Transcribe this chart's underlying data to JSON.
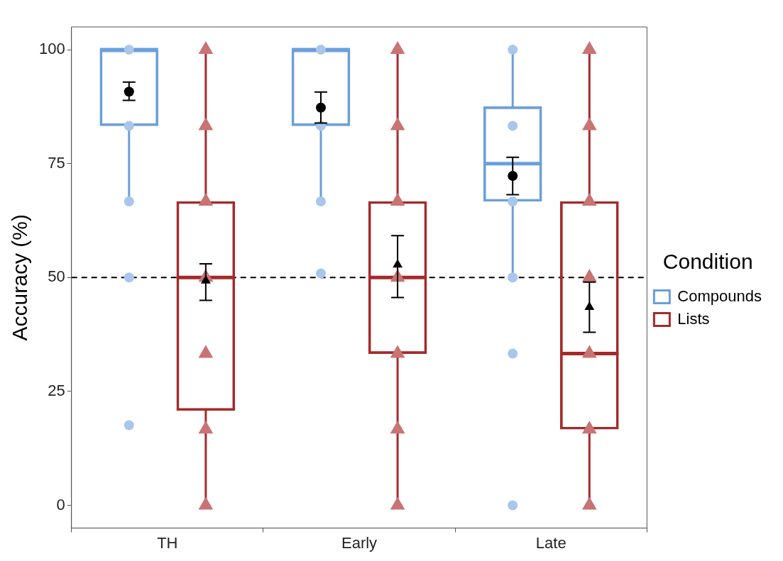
{
  "chart_data": {
    "type": "box",
    "ylabel": "Accuracy (%)",
    "categories": [
      "TH",
      "Early",
      "Late"
    ],
    "ylim": [
      -5,
      105
    ],
    "yticks": [
      0,
      25,
      50,
      75,
      100
    ],
    "grid": false,
    "legend": "right",
    "legend_title": "Condition",
    "ref_lines": [
      {
        "axis": "y",
        "value": 50,
        "color": "#000000",
        "line_style": "dashed"
      }
    ],
    "series": [
      {
        "name": "Compounds",
        "color": "#6a9fdc",
        "boxes": [
          {
            "low": 66.7,
            "q1": 83.3,
            "median": 100,
            "q3": 100,
            "high": 100
          },
          {
            "low": 66.7,
            "q1": 83.3,
            "median": 100,
            "q3": 100,
            "high": 100
          },
          {
            "low": 50,
            "q1": 66.7,
            "median": 75,
            "q3": 87.5,
            "high": 100
          }
        ]
      },
      {
        "name": "Lists",
        "color": "#a52a2a",
        "boxes": [
          {
            "low": 0,
            "q1": 20.8,
            "median": 50,
            "q3": 66.7,
            "high": 100
          },
          {
            "low": 0,
            "q1": 33.3,
            "median": 50,
            "q3": 66.7,
            "high": 100
          },
          {
            "low": 0,
            "q1": 16.7,
            "median": 33.3,
            "q3": 66.7,
            "high": 100
          }
        ]
      },
      {
        "type": "scatter",
        "color": "#a9c6ec",
        "marker": "circle",
        "x": [
          "TH",
          "TH",
          "TH",
          "TH",
          "TH",
          "Early",
          "Early",
          "Early",
          "Early",
          "Late",
          "Late",
          "Late",
          "Late",
          "Late",
          "Late"
        ],
        "values": [
          100,
          83.3,
          66.7,
          50,
          17.6,
          100,
          83.3,
          66.7,
          50.9,
          100,
          83.3,
          66.7,
          50,
          33.3,
          0
        ]
      },
      {
        "type": "scatter",
        "color": "#c97373",
        "marker": "triangle",
        "x": [
          "TH",
          "TH",
          "TH",
          "TH",
          "TH",
          "TH",
          "TH",
          "Early",
          "Early",
          "Early",
          "Early",
          "Early",
          "Early",
          "Early",
          "Late",
          "Late",
          "Late",
          "Late",
          "Late",
          "Late",
          "Late"
        ],
        "values": [
          0,
          16.7,
          33.3,
          50,
          66.7,
          83.3,
          100,
          0,
          16.7,
          33.3,
          50,
          66.7,
          83.3,
          100,
          0,
          16.7,
          33.3,
          50,
          66.7,
          83.3,
          100
        ]
      },
      {
        "type": "scatter",
        "color": "#000000",
        "marker": "circle",
        "x": [
          "TH",
          "Early",
          "Late"
        ],
        "values": [
          90.8,
          87.3,
          72.3
        ],
        "errors": [
          [
            88.9,
            92.9
          ],
          [
            83.9,
            90.7
          ],
          [
            68.2,
            76.4
          ]
        ]
      },
      {
        "type": "scatter",
        "color": "#000000",
        "marker": "triangle",
        "x": [
          "TH",
          "Early",
          "Late"
        ],
        "values": [
          49.3,
          52.8,
          43.5
        ],
        "errors": [
          [
            45,
            53
          ],
          [
            45.6,
            59.2
          ],
          [
            38,
            49
          ]
        ]
      }
    ]
  }
}
